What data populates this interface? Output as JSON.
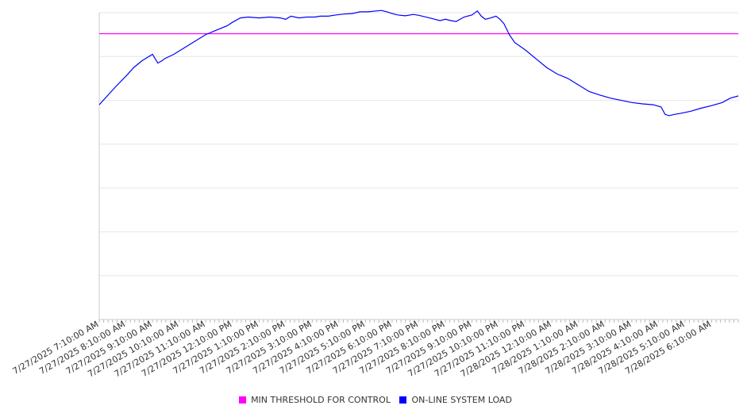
{
  "chart_data": {
    "type": "line",
    "title": "",
    "xlabel": "",
    "ylabel": "",
    "x_tick_labels": [
      "7/27/2025 7:10:00 AM",
      "7/27/2025 8:10:00 AM",
      "7/27/2025 9:10:00 AM",
      "7/27/2025 10:10:00 AM",
      "7/27/2025 11:10:00 AM",
      "7/27/2025 12:10:00 PM",
      "7/27/2025 1:10:00 PM",
      "7/27/2025 2:10:00 PM",
      "7/27/2025 3:10:00 PM",
      "7/27/2025 4:10:00 PM",
      "7/27/2025 5:10:00 PM",
      "7/27/2025 6:10:00 PM",
      "7/27/2025 7:10:00 PM",
      "7/27/2025 8:10:00 PM",
      "7/27/2025 9:10:00 PM",
      "7/27/2025 10:10:00 PM",
      "7/27/2025 11:10:00 PM",
      "7/28/2025 12:10:00 AM",
      "7/28/2025 1:10:00 AM",
      "7/28/2025 2:10:00 AM",
      "7/28/2025 3:10:00 AM",
      "7/28/2025 4:10:00 AM",
      "7/28/2025 5:10:00 AM",
      "7/28/2025 6:10:00 AM"
    ],
    "y_tick_labels": [],
    "ylim": [
      0,
      7
    ],
    "grid": true,
    "legend_position": "bottom-center",
    "series": [
      {
        "name": "MIN THRESHOLD FOR CONTROL",
        "color": "#ff00ff",
        "x": [
          0,
          24
        ],
        "y": [
          6.52,
          6.52
        ]
      },
      {
        "name": "ON-LINE SYSTEM LOAD",
        "color": "#0000ff",
        "x": [
          0,
          0.3,
          0.6,
          1.0,
          1.3,
          1.6,
          2.0,
          2.2,
          2.35,
          2.45,
          2.8,
          3.2,
          3.6,
          4.0,
          4.4,
          4.8,
          5.0,
          5.3,
          5.6,
          6.0,
          6.4,
          6.8,
          7.0,
          7.2,
          7.5,
          7.8,
          8.1,
          8.3,
          8.6,
          8.9,
          9.2,
          9.5,
          9.8,
          10.1,
          10.4,
          10.6,
          10.8,
          11.0,
          11.2,
          11.5,
          11.8,
          12.0,
          12.4,
          12.8,
          13.0,
          13.2,
          13.4,
          13.7,
          14.0,
          14.2,
          14.35,
          14.5,
          14.7,
          14.9,
          15.05,
          15.2,
          15.4,
          15.6,
          16.0,
          16.4,
          16.8,
          17.2,
          17.6,
          18.0,
          18.4,
          18.8,
          19.2,
          19.6,
          20.0,
          20.4,
          20.8,
          21.1,
          21.25,
          21.4,
          21.6,
          21.8,
          22.2,
          22.6,
          23.0,
          23.4,
          23.7,
          24.0
        ],
        "y": [
          4.9,
          5.1,
          5.3,
          5.55,
          5.75,
          5.9,
          6.05,
          5.85,
          5.9,
          5.95,
          6.05,
          6.2,
          6.35,
          6.5,
          6.6,
          6.7,
          6.78,
          6.88,
          6.9,
          6.88,
          6.9,
          6.88,
          6.85,
          6.92,
          6.88,
          6.9,
          6.9,
          6.92,
          6.92,
          6.95,
          6.97,
          6.98,
          7.02,
          7.02,
          7.04,
          7.05,
          7.02,
          6.98,
          6.95,
          6.93,
          6.96,
          6.94,
          6.88,
          6.82,
          6.85,
          6.82,
          6.8,
          6.9,
          6.95,
          7.04,
          6.92,
          6.85,
          6.88,
          6.92,
          6.85,
          6.75,
          6.5,
          6.32,
          6.15,
          5.95,
          5.75,
          5.6,
          5.5,
          5.35,
          5.2,
          5.12,
          5.05,
          5.0,
          4.95,
          4.92,
          4.9,
          4.85,
          4.68,
          4.65,
          4.68,
          4.7,
          4.75,
          4.82,
          4.88,
          4.95,
          5.05,
          5.1
        ]
      }
    ]
  }
}
